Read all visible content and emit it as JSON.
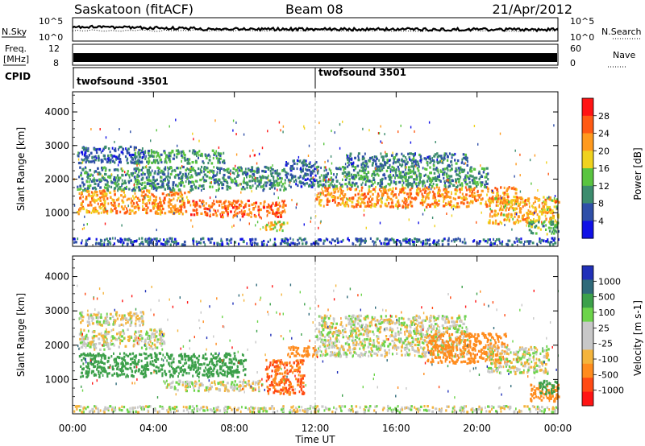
{
  "header": {
    "station": "Saskatoon (fitACF)",
    "beam": "Beam 08",
    "date": "21/Apr/2012"
  },
  "noise_panel": {
    "left_label": "N.Sky",
    "right_label": "N.Search",
    "left_ticks": [
      "10^5",
      "10^0"
    ],
    "right_ticks": [
      "10^5",
      "10^0"
    ]
  },
  "freq_panel": {
    "left_label_line1": "Freq.",
    "left_label_line2": "[MHz]",
    "left_ticks": [
      "12",
      "8"
    ],
    "right_label": "Nave",
    "right_ticks": [
      "60",
      "0"
    ]
  },
  "cpid_panel": {
    "label": "CPID",
    "segments": [
      {
        "label": "twofsound -3501",
        "start_hour": 0
      },
      {
        "label": "twofsound 3501",
        "start_hour": 12
      }
    ]
  },
  "time_axis": {
    "label": "Time UT",
    "ticks": [
      "00:00",
      "04:00",
      "08:00",
      "12:00",
      "16:00",
      "20:00",
      "00:00"
    ],
    "tick_hours": [
      0,
      4,
      8,
      12,
      16,
      20,
      24
    ]
  },
  "colors": {
    "power_scale": [
      "#1010e6",
      "#2f4fa8",
      "#3c8c6e",
      "#59c440",
      "#f0d21e",
      "#ff9a1e",
      "#ff5a14",
      "#ff1414"
    ],
    "velocity_scale": [
      "#2030b8",
      "#2f6a7a",
      "#3ca04a",
      "#6cd44a",
      "#c8c8c8",
      "#c8c8c8",
      "#f4b43c",
      "#ff8c1e",
      "#ff4a14",
      "#ff1414"
    ]
  },
  "chart_data": [
    {
      "type": "heatmap",
      "name": "power",
      "ylabel": "Slant Range [km]",
      "xlabel": "",
      "xlim_hours": [
        0,
        24
      ],
      "ylim": [
        0,
        4600
      ],
      "yticks": [
        "1000",
        "2000",
        "3000",
        "4000"
      ],
      "ytick_values": [
        1000,
        2000,
        3000,
        4000
      ],
      "colorbar": {
        "label": "Power [dB]",
        "ticks": [
          "28",
          "24",
          "20",
          "16",
          "12",
          "8",
          "4"
        ],
        "tick_values": [
          28,
          24,
          20,
          16,
          12,
          8,
          4
        ]
      },
      "scatter_regions": [
        {
          "x0": 0.2,
          "x1": 5.8,
          "y0": 1000,
          "y1": 1700,
          "value_db": 24
        },
        {
          "x0": 5.8,
          "x1": 10.5,
          "y0": 900,
          "y1": 1400,
          "value_db": 27
        },
        {
          "x0": 0.2,
          "x1": 10.5,
          "y0": 1700,
          "y1": 2400,
          "value_db": 12
        },
        {
          "x0": 0.2,
          "x1": 3.5,
          "y0": 2500,
          "y1": 3000,
          "value_db": 9
        },
        {
          "x0": 3.0,
          "x1": 7.5,
          "y0": 2500,
          "y1": 2900,
          "value_db": 13
        },
        {
          "x0": 9.5,
          "x1": 10.6,
          "y0": 500,
          "y1": 800,
          "value_db": 20
        },
        {
          "x0": 10.5,
          "x1": 12.0,
          "y0": 1800,
          "y1": 2600,
          "value_db": 9
        },
        {
          "x0": 12.0,
          "x1": 22.0,
          "y0": 1200,
          "y1": 1800,
          "value_db": 25
        },
        {
          "x0": 12.0,
          "x1": 20.5,
          "y0": 1800,
          "y1": 2400,
          "value_db": 13
        },
        {
          "x0": 13.5,
          "x1": 19.5,
          "y0": 2400,
          "y1": 2800,
          "value_db": 10
        },
        {
          "x0": 20.5,
          "x1": 24.0,
          "y0": 700,
          "y1": 1500,
          "value_db": 22
        },
        {
          "x0": 22.5,
          "x1": 24.0,
          "y0": 400,
          "y1": 800,
          "value_db": 14
        },
        {
          "x0": 0.0,
          "x1": 24.0,
          "y0": 80,
          "y1": 280,
          "value_db": 8
        }
      ]
    },
    {
      "type": "heatmap",
      "name": "velocity",
      "ylabel": "Slant Range [km]",
      "xlabel": "Time UT",
      "xlim_hours": [
        0,
        24
      ],
      "ylim": [
        0,
        4600
      ],
      "yticks": [
        "1000",
        "2000",
        "3000",
        "4000"
      ],
      "ytick_values": [
        1000,
        2000,
        3000,
        4000
      ],
      "colorbar": {
        "label": "Velocity [m s-1]",
        "ticks": [
          "1000",
          "500",
          "100",
          "25",
          "-25",
          "-100",
          "-500",
          "-1000"
        ],
        "tick_values": [
          1000,
          500,
          100,
          25,
          -25,
          -100,
          -500,
          -1000
        ]
      },
      "scatter_regions": [
        {
          "x0": 0.3,
          "x1": 8.5,
          "y0": 1100,
          "y1": 1800,
          "value_ms": 150
        },
        {
          "x0": 0.3,
          "x1": 4.5,
          "y0": 1900,
          "y1": 2500,
          "value_ms": 0
        },
        {
          "x0": 0.3,
          "x1": 3.5,
          "y0": 2600,
          "y1": 3000,
          "value_ms": 0
        },
        {
          "x0": 4.5,
          "x1": 9.5,
          "y0": 700,
          "y1": 1000,
          "value_ms": 0
        },
        {
          "x0": 9.5,
          "x1": 11.5,
          "y0": 600,
          "y1": 1600,
          "value_ms": -500
        },
        {
          "x0": 10.5,
          "x1": 12.0,
          "y0": 1700,
          "y1": 2000,
          "value_ms": -300
        },
        {
          "x0": 12.0,
          "x1": 19.5,
          "y0": 1700,
          "y1": 2900,
          "value_ms": 0
        },
        {
          "x0": 17.5,
          "x1": 21.5,
          "y0": 1500,
          "y1": 2400,
          "value_ms": -200
        },
        {
          "x0": 20.5,
          "x1": 23.5,
          "y0": 1200,
          "y1": 2000,
          "value_ms": 0
        },
        {
          "x0": 22.6,
          "x1": 24.0,
          "y0": 400,
          "y1": 900,
          "value_ms": -300
        },
        {
          "x0": 23.0,
          "x1": 24.0,
          "y0": 600,
          "y1": 1000,
          "value_ms": 150
        },
        {
          "x0": 0.0,
          "x1": 24.0,
          "y0": 80,
          "y1": 260,
          "value_ms": 0
        }
      ]
    }
  ]
}
